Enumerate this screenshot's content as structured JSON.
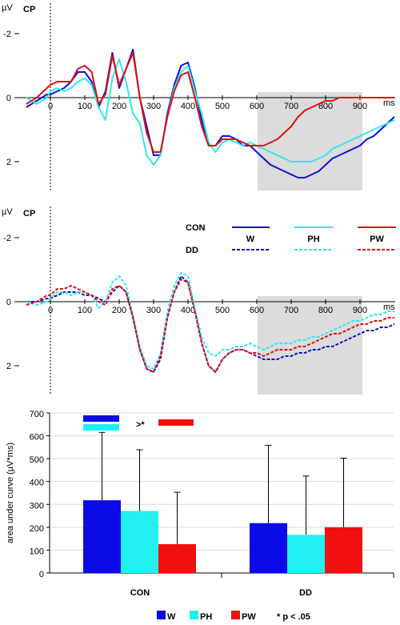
{
  "chart_data": [
    {
      "type": "line",
      "panel_label": "CP",
      "y_unit_label": "µV",
      "x_unit_label": "ms",
      "x_ticks": [
        0,
        100,
        200,
        300,
        400,
        500,
        600,
        700,
        800,
        900
      ],
      "y_ticks": [
        -2,
        0,
        2
      ],
      "y_axis": "negative up",
      "xlim": [
        -70,
        1000
      ],
      "ylim": [
        -3,
        3
      ],
      "shaded_window": [
        600,
        900
      ],
      "series": [
        {
          "color": "#1010d0",
          "dash": "solid",
          "x": [
            -70,
            -40,
            -10,
            0,
            20,
            40,
            60,
            80,
            100,
            120,
            140,
            160,
            180,
            200,
            220,
            240,
            260,
            280,
            300,
            320,
            340,
            360,
            380,
            400,
            420,
            440,
            460,
            480,
            500,
            520,
            540,
            560,
            580,
            600,
            620,
            640,
            660,
            680,
            700,
            720,
            740,
            760,
            780,
            800,
            820,
            840,
            860,
            880,
            900,
            920,
            940,
            960,
            980,
            1000
          ],
          "y": [
            0.3,
            0.1,
            -0.1,
            -0.1,
            -0.2,
            -0.3,
            -0.5,
            -0.8,
            -0.8,
            -0.5,
            0.3,
            -0.2,
            -1.4,
            -0.3,
            -0.9,
            -1.5,
            0.0,
            0.9,
            1.8,
            1.8,
            0.5,
            -0.4,
            -1.0,
            -1.1,
            -0.3,
            0.7,
            1.5,
            1.5,
            1.2,
            1.2,
            1.3,
            1.5,
            1.5,
            1.7,
            1.9,
            2.1,
            2.2,
            2.3,
            2.4,
            2.5,
            2.5,
            2.4,
            2.3,
            2.1,
            1.9,
            1.8,
            1.7,
            1.6,
            1.5,
            1.3,
            1.2,
            1.0,
            0.8,
            0.6
          ]
        },
        {
          "color": "#30e8f0",
          "dash": "solid",
          "x": [
            -70,
            -40,
            -10,
            0,
            20,
            40,
            60,
            80,
            100,
            120,
            140,
            160,
            180,
            200,
            220,
            240,
            260,
            280,
            300,
            320,
            340,
            360,
            380,
            400,
            420,
            440,
            460,
            480,
            500,
            520,
            540,
            560,
            580,
            600,
            620,
            640,
            660,
            680,
            700,
            720,
            740,
            760,
            780,
            800,
            820,
            840,
            860,
            880,
            900,
            920,
            940,
            960,
            980,
            1000
          ],
          "y": [
            0.0,
            0.2,
            0.0,
            -0.2,
            -0.3,
            -0.2,
            -0.3,
            -0.5,
            -0.6,
            -0.4,
            0.3,
            0.7,
            -0.6,
            -1.2,
            -0.5,
            0.5,
            0.8,
            1.8,
            2.1,
            1.8,
            0.6,
            -0.3,
            -0.8,
            -1.0,
            -0.2,
            0.5,
            1.4,
            1.7,
            1.4,
            1.3,
            1.4,
            1.5,
            1.4,
            1.5,
            1.6,
            1.7,
            1.8,
            1.9,
            2.0,
            2.0,
            2.0,
            2.0,
            1.9,
            1.8,
            1.6,
            1.5,
            1.4,
            1.3,
            1.2,
            1.1,
            1.0,
            0.9,
            0.8,
            0.7
          ]
        },
        {
          "color": "#e01010",
          "dash": "solid",
          "x": [
            -70,
            -40,
            -10,
            0,
            20,
            40,
            60,
            80,
            100,
            120,
            140,
            160,
            180,
            200,
            220,
            240,
            260,
            280,
            300,
            320,
            340,
            360,
            380,
            400,
            420,
            440,
            460,
            480,
            500,
            520,
            540,
            560,
            580,
            600,
            620,
            640,
            660,
            680,
            700,
            720,
            740,
            760,
            780,
            800,
            820,
            840,
            860,
            880,
            900,
            920,
            940,
            960,
            980,
            1000
          ],
          "y": [
            0.2,
            0.0,
            -0.3,
            -0.4,
            -0.5,
            -0.5,
            -0.5,
            -0.9,
            -1.0,
            -0.8,
            0.2,
            -0.1,
            -1.3,
            -0.4,
            -0.9,
            -1.4,
            0.0,
            1.1,
            1.7,
            1.7,
            0.6,
            -0.2,
            -0.7,
            -0.8,
            0.0,
            0.9,
            1.5,
            1.5,
            1.3,
            1.3,
            1.3,
            1.4,
            1.5,
            1.5,
            1.5,
            1.4,
            1.3,
            1.1,
            0.9,
            0.6,
            0.4,
            0.3,
            0.2,
            0.1,
            0.1,
            0.0,
            0.0,
            0.0,
            0.0,
            0.0,
            0.0,
            0.0,
            0.0,
            0.0
          ]
        }
      ]
    },
    {
      "type": "line",
      "panel_label": "CP",
      "y_unit_label": "µV",
      "x_unit_label": "ms",
      "x_ticks": [
        0,
        100,
        200,
        300,
        400,
        500,
        600,
        700,
        800,
        900
      ],
      "y_ticks": [
        -2,
        0,
        2
      ],
      "y_axis": "negative up",
      "xlim": [
        -70,
        1000
      ],
      "ylim": [
        -3,
        3
      ],
      "shaded_window": [
        600,
        900
      ],
      "legend": {
        "groups": [
          "CON",
          "DD"
        ],
        "conditions": [
          "W",
          "PH",
          "PW"
        ]
      },
      "series": [
        {
          "color": "#1010d0",
          "dash": "dashed",
          "x": [
            -70,
            -40,
            -10,
            0,
            20,
            40,
            60,
            80,
            100,
            120,
            140,
            160,
            180,
            200,
            220,
            240,
            260,
            280,
            300,
            320,
            340,
            360,
            380,
            400,
            420,
            440,
            460,
            480,
            500,
            520,
            540,
            560,
            580,
            600,
            620,
            640,
            660,
            680,
            700,
            720,
            740,
            760,
            780,
            800,
            820,
            840,
            860,
            880,
            900,
            920,
            940,
            960,
            980,
            1000
          ],
          "y": [
            0.0,
            0.0,
            -0.1,
            -0.1,
            -0.2,
            -0.3,
            -0.3,
            -0.3,
            -0.2,
            -0.2,
            -0.1,
            0.0,
            -0.3,
            -0.5,
            -0.3,
            0.5,
            1.5,
            2.1,
            2.2,
            1.8,
            0.5,
            -0.3,
            -0.8,
            -0.6,
            0.3,
            1.3,
            2.0,
            2.2,
            1.8,
            1.6,
            1.5,
            1.5,
            1.6,
            1.7,
            1.8,
            1.8,
            1.8,
            1.7,
            1.7,
            1.6,
            1.6,
            1.5,
            1.5,
            1.4,
            1.4,
            1.3,
            1.2,
            1.1,
            1.0,
            0.9,
            0.9,
            0.8,
            0.8,
            0.7
          ]
        },
        {
          "color": "#30e8f0",
          "dash": "dashed",
          "x": [
            -70,
            -40,
            -10,
            0,
            20,
            40,
            60,
            80,
            100,
            120,
            140,
            160,
            180,
            200,
            220,
            240,
            260,
            280,
            300,
            320,
            340,
            360,
            380,
            400,
            420,
            440,
            460,
            480,
            500,
            520,
            540,
            560,
            580,
            600,
            620,
            640,
            660,
            680,
            700,
            720,
            740,
            760,
            780,
            800,
            820,
            840,
            860,
            880,
            900,
            920,
            940,
            960,
            980,
            1000
          ],
          "y": [
            0.0,
            0.1,
            0.0,
            -0.1,
            -0.3,
            -0.3,
            -0.2,
            -0.3,
            -0.3,
            -0.2,
            0.2,
            0.0,
            -0.6,
            -0.8,
            -0.5,
            0.4,
            1.4,
            2.0,
            2.1,
            1.6,
            0.3,
            -0.5,
            -0.9,
            -0.8,
            0.2,
            1.1,
            1.6,
            1.7,
            1.5,
            1.5,
            1.4,
            1.4,
            1.3,
            1.4,
            1.5,
            1.4,
            1.3,
            1.3,
            1.3,
            1.2,
            1.2,
            1.1,
            1.1,
            1.0,
            0.9,
            0.8,
            0.7,
            0.6,
            0.6,
            0.5,
            0.4,
            0.4,
            0.3,
            0.3
          ]
        },
        {
          "color": "#e01010",
          "dash": "dashed",
          "x": [
            -70,
            -40,
            -10,
            0,
            20,
            40,
            60,
            80,
            100,
            120,
            140,
            160,
            180,
            200,
            220,
            240,
            260,
            280,
            300,
            320,
            340,
            360,
            380,
            400,
            420,
            440,
            460,
            480,
            500,
            520,
            540,
            560,
            580,
            600,
            620,
            640,
            660,
            680,
            700,
            720,
            740,
            760,
            780,
            800,
            820,
            840,
            860,
            880,
            900,
            920,
            940,
            960,
            980,
            1000
          ],
          "y": [
            0.1,
            0.0,
            -0.2,
            -0.2,
            -0.4,
            -0.4,
            -0.5,
            -0.4,
            -0.3,
            -0.2,
            0.0,
            0.1,
            -0.4,
            -0.5,
            -0.3,
            0.5,
            1.5,
            2.1,
            2.2,
            1.7,
            0.5,
            -0.3,
            -0.7,
            -0.6,
            0.3,
            1.3,
            2.0,
            2.2,
            1.8,
            1.6,
            1.5,
            1.5,
            1.6,
            1.6,
            1.7,
            1.6,
            1.5,
            1.5,
            1.5,
            1.4,
            1.4,
            1.3,
            1.2,
            1.1,
            1.0,
            1.0,
            0.9,
            0.8,
            0.7,
            0.7,
            0.6,
            0.6,
            0.5,
            0.5
          ]
        }
      ]
    },
    {
      "type": "bar",
      "ylabel": "area under curve (µV*ms)",
      "ylim": [
        0,
        700
      ],
      "y_ticks": [
        0,
        100,
        200,
        300,
        400,
        500,
        600,
        700
      ],
      "categories": [
        "CON",
        "DD"
      ],
      "series": [
        {
          "name": "W",
          "color": "#0a0ae6",
          "values": [
            318,
            218
          ],
          "errors": [
            297,
            340
          ]
        },
        {
          "name": "PH",
          "color": "#22f0f0",
          "values": [
            271,
            167
          ],
          "errors": [
            268,
            257
          ]
        },
        {
          "name": "PW",
          "color": "#f01010",
          "values": [
            126,
            200
          ],
          "errors": [
            227,
            302
          ]
        }
      ],
      "significance_marker": ">*",
      "legend_note": "* p < .05"
    }
  ]
}
